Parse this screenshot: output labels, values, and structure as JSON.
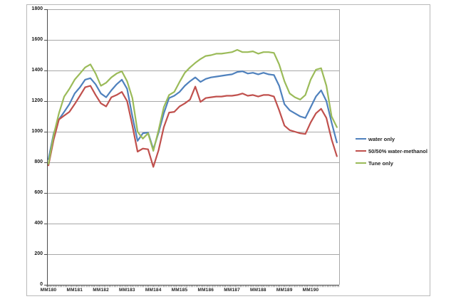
{
  "figure": {
    "border_color": "#b9b9b9",
    "background_color": "#ffffff",
    "gridline_color": "#a8a8a8",
    "axis_color": "#4d4d4d",
    "text_color": "#1c1c1c"
  },
  "chart_data": {
    "type": "line",
    "title": "",
    "xlabel": "",
    "ylabel": "",
    "ylim": [
      0,
      1800
    ],
    "grid": "horizontal",
    "legend_position": "right",
    "y_ticks": [
      0,
      200,
      400,
      600,
      800,
      1000,
      1200,
      1400,
      1600,
      1800
    ],
    "x_tick_labels": [
      "MM180",
      "MM181",
      "MM182",
      "MM183",
      "MM184",
      "MM185",
      "MM186",
      "MM187",
      "MM188",
      "MM189",
      "MM190"
    ],
    "x": [
      180.0,
      180.2,
      180.4,
      180.6,
      180.8,
      181.0,
      181.2,
      181.4,
      181.6,
      181.8,
      182.0,
      182.2,
      182.4,
      182.6,
      182.8,
      183.0,
      183.2,
      183.4,
      183.6,
      183.8,
      184.0,
      184.2,
      184.4,
      184.6,
      184.8,
      185.0,
      185.2,
      185.4,
      185.6,
      185.8,
      186.0,
      186.2,
      186.4,
      186.6,
      186.8,
      187.0,
      187.2,
      187.4,
      187.6,
      187.8,
      188.0,
      188.2,
      188.4,
      188.6,
      188.8,
      189.0,
      189.2,
      189.4,
      189.6,
      189.8,
      190.0,
      190.2,
      190.4,
      190.6,
      190.8,
      191.0
    ],
    "series": [
      {
        "name": "water only",
        "color": "#4F81BD",
        "values": [
          820,
          990,
          1080,
          1130,
          1180,
          1250,
          1290,
          1340,
          1350,
          1310,
          1250,
          1225,
          1270,
          1310,
          1340,
          1280,
          1100,
          940,
          990,
          995,
          885,
          995,
          1120,
          1220,
          1235,
          1260,
          1300,
          1330,
          1355,
          1325,
          1345,
          1355,
          1360,
          1365,
          1370,
          1375,
          1390,
          1395,
          1380,
          1385,
          1375,
          1385,
          1375,
          1370,
          1300,
          1180,
          1140,
          1120,
          1100,
          1090,
          1160,
          1230,
          1270,
          1200,
          1060,
          930
        ]
      },
      {
        "name": "50/50% water-methanol",
        "color": "#C0504D",
        "values": [
          780,
          950,
          1080,
          1105,
          1130,
          1180,
          1235,
          1290,
          1300,
          1240,
          1185,
          1165,
          1225,
          1240,
          1260,
          1200,
          1040,
          870,
          890,
          885,
          770,
          880,
          1030,
          1125,
          1130,
          1165,
          1185,
          1210,
          1295,
          1195,
          1220,
          1225,
          1230,
          1230,
          1235,
          1235,
          1240,
          1250,
          1235,
          1240,
          1230,
          1240,
          1240,
          1230,
          1140,
          1040,
          1010,
          1000,
          990,
          985,
          1060,
          1120,
          1150,
          1090,
          950,
          840
        ]
      },
      {
        "name": "Tune only",
        "color": "#9BBB59",
        "values": [
          790,
          980,
          1120,
          1230,
          1280,
          1340,
          1380,
          1420,
          1440,
          1380,
          1300,
          1320,
          1355,
          1380,
          1395,
          1330,
          1220,
          1000,
          955,
          990,
          875,
          1010,
          1160,
          1240,
          1260,
          1325,
          1385,
          1420,
          1450,
          1475,
          1495,
          1500,
          1510,
          1510,
          1515,
          1520,
          1535,
          1520,
          1520,
          1525,
          1510,
          1520,
          1520,
          1515,
          1440,
          1330,
          1250,
          1225,
          1210,
          1240,
          1340,
          1405,
          1415,
          1300,
          1100,
          1030
        ]
      }
    ]
  }
}
